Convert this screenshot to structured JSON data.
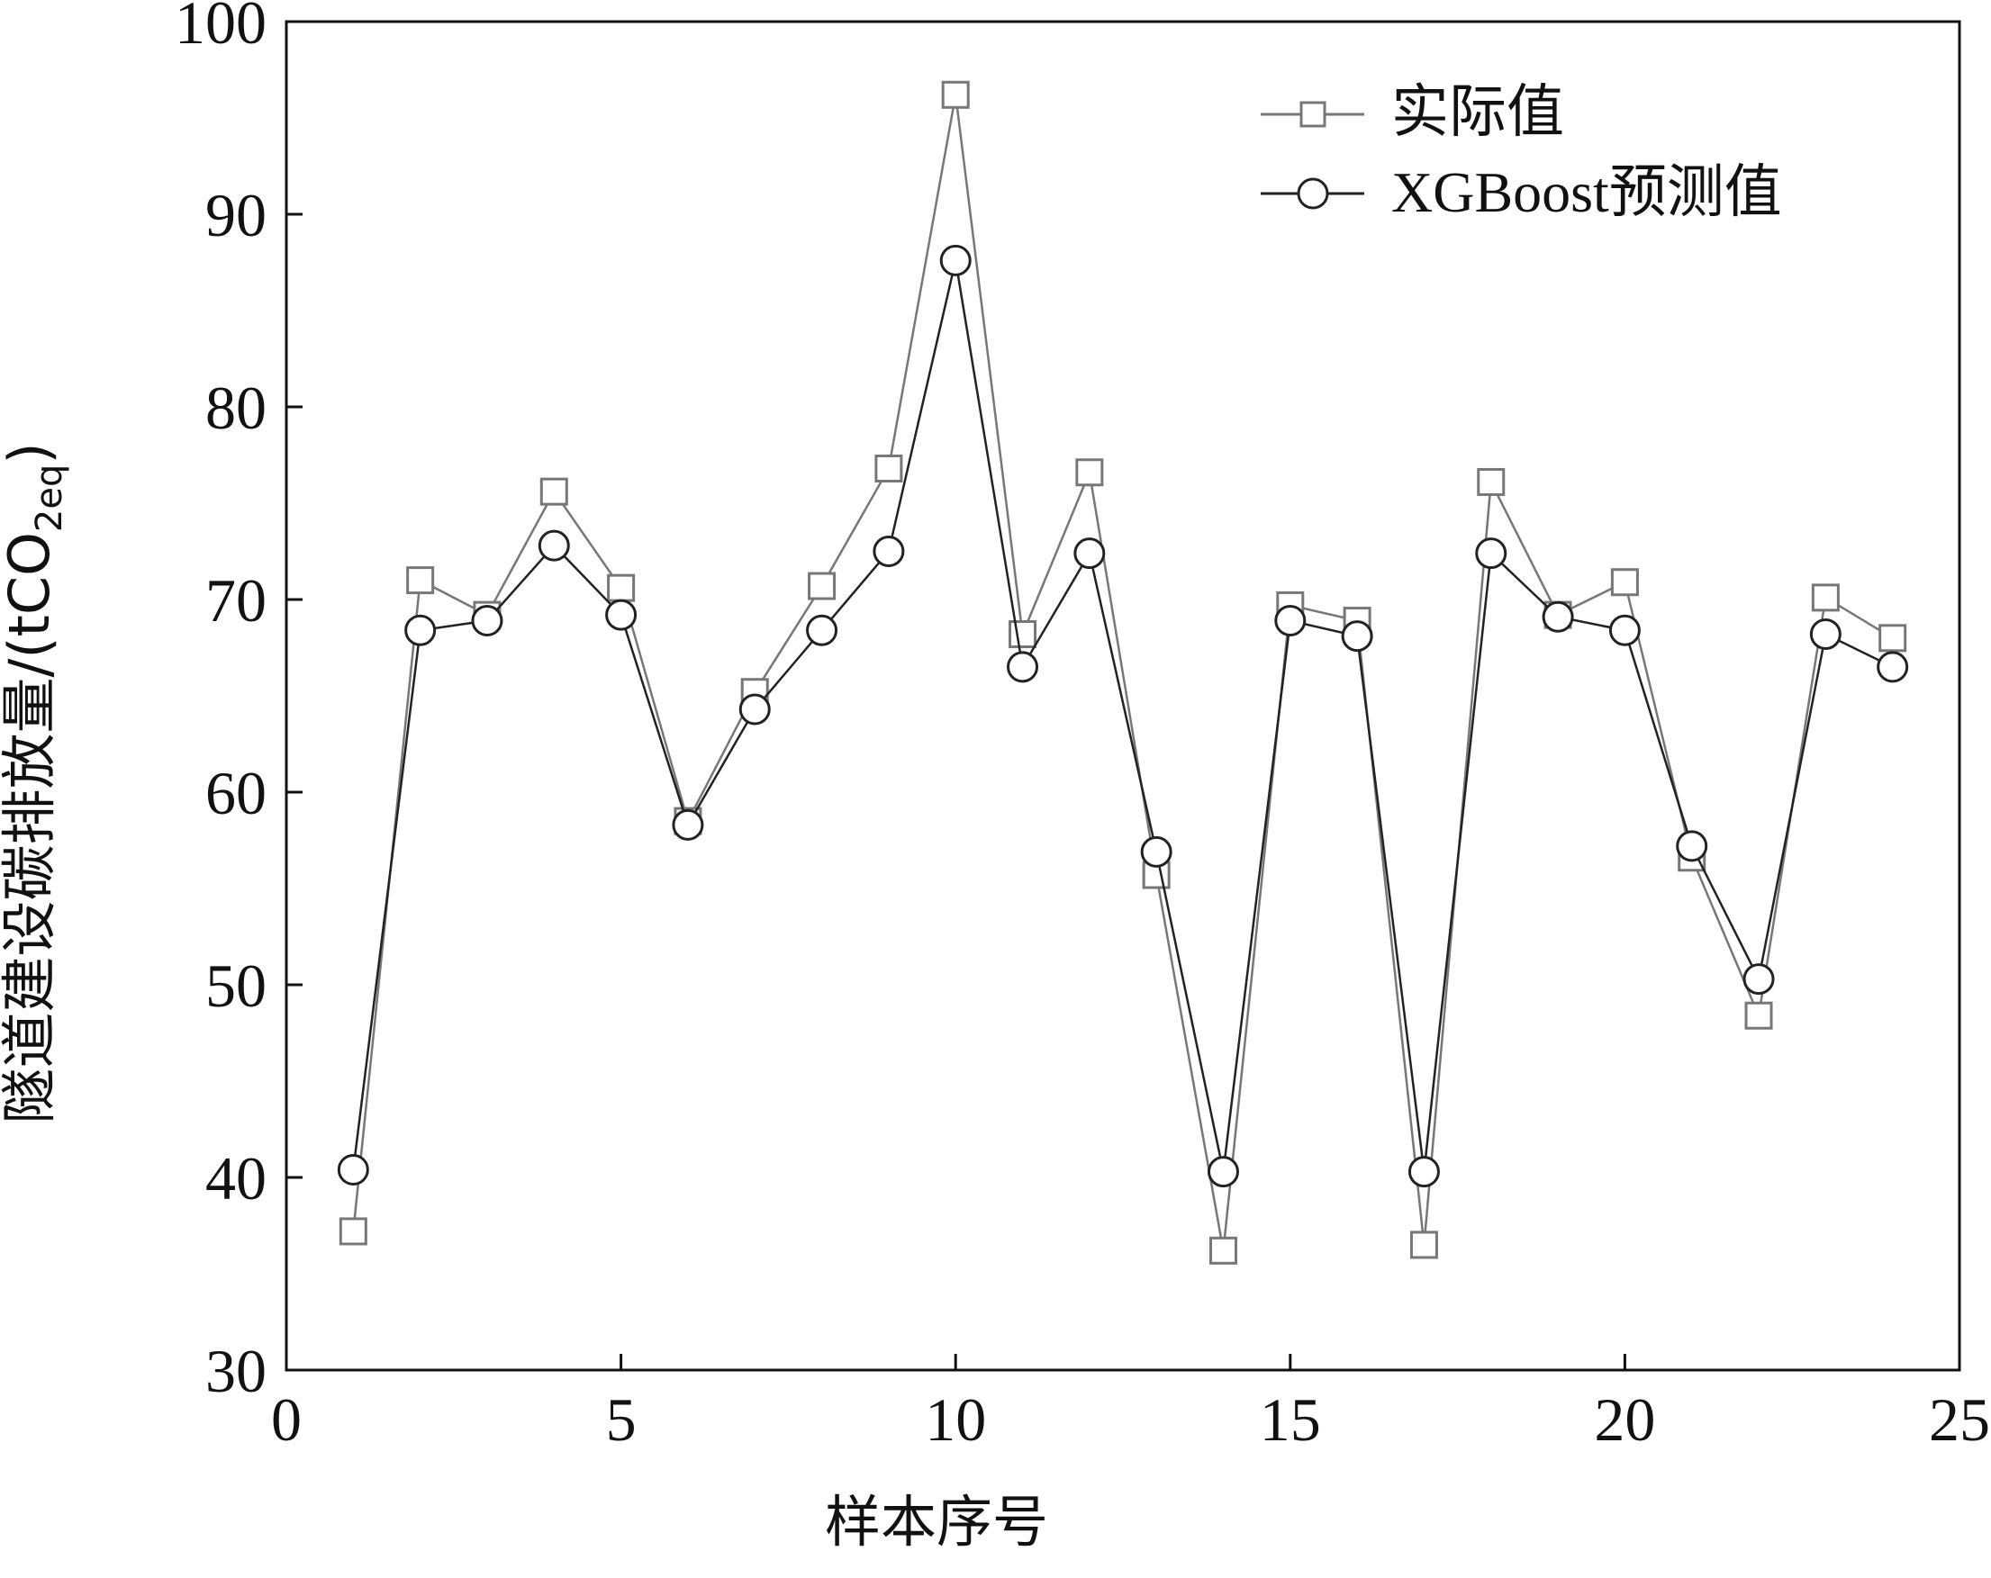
{
  "chart_data": {
    "type": "line",
    "title": "",
    "xlabel": "样本序号",
    "ylabel": "隧道建设碳排放量/(tCO",
    "ylabel_sub": "2eq",
    "ylabel_close": ")",
    "xlim": [
      0,
      25
    ],
    "ylim": [
      30,
      100
    ],
    "xticks": [
      "0",
      "5",
      "10",
      "15",
      "20",
      "25"
    ],
    "yticks": [
      "30",
      "40",
      "50",
      "60",
      "70",
      "80",
      "90",
      "100"
    ],
    "grid": false,
    "legend_position": "top-right",
    "x": [
      1,
      2,
      3,
      4,
      5,
      6,
      7,
      8,
      9,
      10,
      11,
      12,
      13,
      14,
      15,
      16,
      17,
      18,
      19,
      20,
      21,
      22,
      23,
      24
    ],
    "series": [
      {
        "name": "实际值",
        "marker": "square",
        "color": "#777777",
        "values": [
          37.2,
          71.0,
          69.2,
          75.6,
          70.6,
          58.5,
          65.2,
          70.7,
          76.8,
          96.2,
          68.2,
          76.6,
          55.7,
          36.2,
          69.7,
          68.9,
          36.5,
          76.1,
          69.2,
          70.9,
          56.6,
          48.4,
          70.1,
          68.0
        ]
      },
      {
        "name": "XGBoost预测值",
        "marker": "circle",
        "color": "#222222",
        "values": [
          40.4,
          68.4,
          68.9,
          72.8,
          69.2,
          58.3,
          64.3,
          68.4,
          72.5,
          87.6,
          66.5,
          72.4,
          56.9,
          40.3,
          68.9,
          68.1,
          40.3,
          72.4,
          69.1,
          68.4,
          57.2,
          50.3,
          68.2,
          66.5
        ]
      }
    ]
  }
}
